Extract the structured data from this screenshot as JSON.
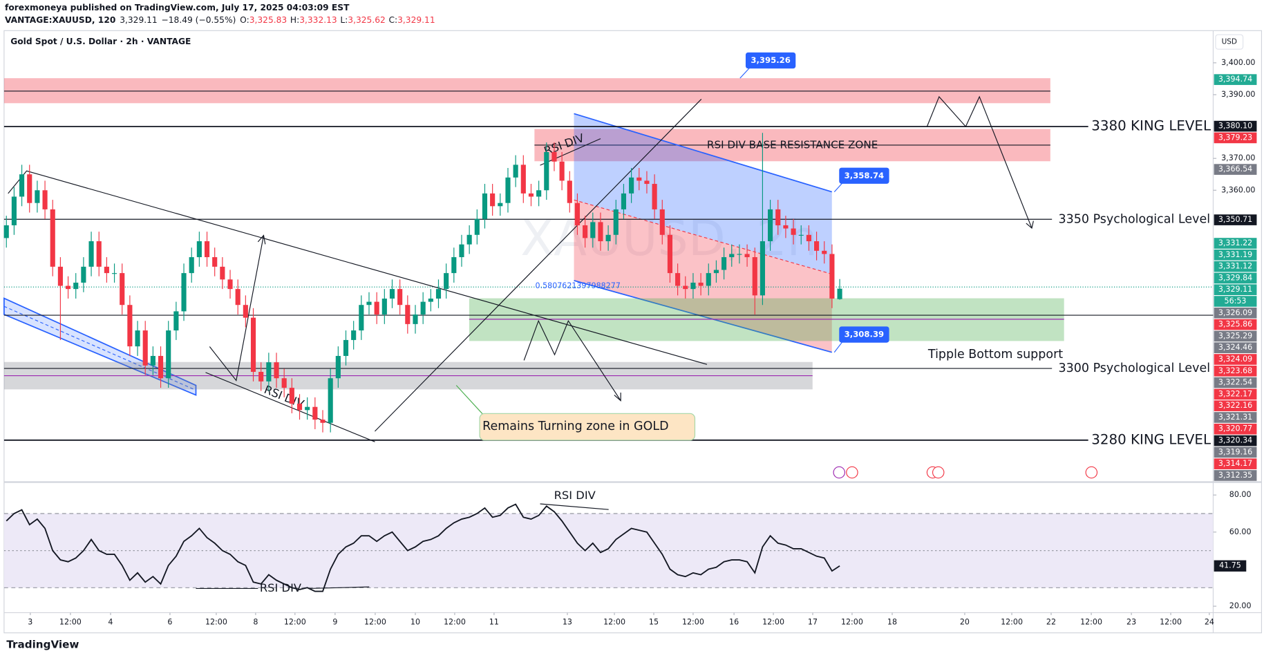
{
  "header": {
    "line1": "forexmoneya published on TradingView.com, July 17, 2025 04:03:09 EST",
    "symbol": "VANTAGE:XAUUSD, 120",
    "last": "3,329.11",
    "change": "−18.49 (−0.55%)",
    "o_label": "O:",
    "o": "3,325.83",
    "h_label": "H:",
    "h": "3,332.13",
    "l_label": "L:",
    "l": "3,325.62",
    "c_label": "C:",
    "c": "3,329.11"
  },
  "chart_data": [
    {
      "type": "candlestick",
      "title": "Gold Spot / U.S. Dollar · 2h · VANTAGE",
      "currency": "USD",
      "watermark": "XAUUSD, 2h",
      "xlim": [
        -0.3,
        156.4
      ],
      "ylim": [
        3268.4,
        3410.1
      ],
      "yticks": [
        {
          "value": 3400,
          "label": "3,400.00"
        },
        {
          "value": 3390,
          "label": "3,390.00"
        },
        {
          "value": 3370,
          "label": "3,370.00"
        },
        {
          "value": 3360,
          "label": "3,360.00"
        }
      ],
      "xticks": [
        {
          "value": 3.1,
          "label": "3"
        },
        {
          "value": 8.3,
          "label": "12:00"
        },
        {
          "value": 13.5,
          "label": "4"
        },
        {
          "value": 21.2,
          "label": "6"
        },
        {
          "value": 27.2,
          "label": "12:00"
        },
        {
          "value": 32.3,
          "label": "8"
        },
        {
          "value": 37.4,
          "label": "12:00"
        },
        {
          "value": 42.6,
          "label": "9"
        },
        {
          "value": 47.8,
          "label": "12:00"
        },
        {
          "value": 53.0,
          "label": "10"
        },
        {
          "value": 58.1,
          "label": "12:00"
        },
        {
          "value": 63.2,
          "label": "11"
        },
        {
          "value": 72.7,
          "label": "13"
        },
        {
          "value": 78.8,
          "label": "12:00"
        },
        {
          "value": 83.9,
          "label": "15"
        },
        {
          "value": 89.0,
          "label": "12:00"
        },
        {
          "value": 94.3,
          "label": "16"
        },
        {
          "value": 99.4,
          "label": "12:00"
        },
        {
          "value": 104.5,
          "label": "17"
        },
        {
          "value": 109.6,
          "label": "12:00"
        },
        {
          "value": 114.8,
          "label": "18"
        },
        {
          "value": 124.2,
          "label": "20"
        },
        {
          "value": 130.3,
          "label": "12:00"
        },
        {
          "value": 135.4,
          "label": "22"
        },
        {
          "value": 140.6,
          "label": "12:00"
        },
        {
          "value": 145.8,
          "label": "23"
        },
        {
          "value": 150.9,
          "label": "12:00"
        },
        {
          "value": 155.9,
          "label": "24"
        }
      ],
      "up_color": "#089981",
      "down_color": "#f23645",
      "open": [
        3345,
        3349,
        3358,
        3365,
        3356,
        3360,
        3354,
        3336,
        3330,
        3329,
        3331,
        3336,
        3344,
        3336,
        3334,
        3334,
        3324,
        3311,
        3316,
        3305,
        3308,
        3301,
        3316,
        3322,
        3334,
        3339,
        3344,
        3339,
        3336,
        3332,
        3329,
        3324,
        3320,
        3303,
        3300,
        3306,
        3301,
        3298,
        3293,
        3291,
        3292,
        3288,
        3287,
        3301,
        3308,
        3313,
        3316,
        3324,
        3325,
        3321,
        3326,
        3329,
        3324,
        3318,
        3321,
        3325,
        3326,
        3329,
        3334,
        3339,
        3343,
        3346,
        3351,
        3359,
        3355,
        3356,
        3364,
        3368,
        3359,
        3358,
        3360,
        3372,
        3369,
        3363,
        3356,
        3349,
        3345,
        3350,
        3344,
        3346,
        3354,
        3359,
        3364,
        3363,
        3362,
        3354,
        3346,
        3334,
        3330,
        3329,
        3331,
        3330,
        3334,
        3335,
        3339,
        3340,
        3340,
        3339,
        3327,
        3344,
        3354,
        3349,
        3348,
        3346,
        3346,
        3344,
        3341,
        3340,
        3325.83
      ],
      "high": [
        3352,
        3361,
        3368,
        3368,
        3363,
        3363,
        3357,
        3339,
        3333,
        3334,
        3339,
        3347,
        3347,
        3339,
        3337,
        3337,
        3327,
        3319,
        3319,
        3311,
        3311,
        3319,
        3325,
        3337,
        3342,
        3347,
        3347,
        3342,
        3339,
        3335,
        3332,
        3327,
        3323,
        3306,
        3309,
        3309,
        3304,
        3301,
        3296,
        3295,
        3295,
        3291,
        3304,
        3311,
        3316,
        3319,
        3327,
        3328,
        3328,
        3329,
        3332,
        3332,
        3327,
        3324,
        3328,
        3329,
        3332,
        3337,
        3342,
        3346,
        3349,
        3354,
        3362,
        3362,
        3359,
        3367,
        3371,
        3371,
        3362,
        3363,
        3375,
        3375,
        3372,
        3366,
        3359,
        3352,
        3353,
        3353,
        3349,
        3357,
        3362,
        3367,
        3367,
        3366,
        3365,
        3357,
        3349,
        3337,
        3333,
        3334,
        3334,
        3337,
        3338,
        3342,
        3343,
        3343,
        3343,
        3342,
        3378,
        3357,
        3357,
        3352,
        3351,
        3349,
        3349,
        3347,
        3344,
        3343,
        3332.13
      ],
      "low": [
        3342,
        3346,
        3355,
        3353,
        3353,
        3351,
        3333,
        3313,
        3326,
        3326,
        3328,
        3333,
        3333,
        3331,
        3331,
        3321,
        3308,
        3308,
        3302,
        3302,
        3298,
        3298,
        3313,
        3319,
        3331,
        3336,
        3336,
        3333,
        3329,
        3326,
        3321,
        3317,
        3300,
        3297,
        3297,
        3298,
        3295,
        3290,
        3288,
        3288,
        3285,
        3284,
        3284,
        3298,
        3305,
        3310,
        3313,
        3321,
        3318,
        3318,
        3323,
        3321,
        3315,
        3315,
        3318,
        3322,
        3323,
        3326,
        3331,
        3336,
        3340,
        3343,
        3348,
        3352,
        3352,
        3353,
        3361,
        3356,
        3355,
        3355,
        3357,
        3366,
        3360,
        3353,
        3346,
        3342,
        3342,
        3341,
        3341,
        3343,
        3351,
        3356,
        3360,
        3359,
        3351,
        3343,
        3331,
        3327,
        3326,
        3326,
        3327,
        3327,
        3331,
        3332,
        3336,
        3337,
        3336,
        3321,
        3324,
        3341,
        3346,
        3345,
        3343,
        3343,
        3341,
        3338,
        3337,
        3323,
        3325.62
      ],
      "close": [
        3349,
        3358,
        3365,
        3356,
        3360,
        3354,
        3336,
        3330,
        3329,
        3331,
        3336,
        3344,
        3336,
        3334,
        3334,
        3324,
        3311,
        3316,
        3305,
        3308,
        3301,
        3316,
        3322,
        3334,
        3339,
        3344,
        3339,
        3336,
        3332,
        3329,
        3324,
        3320,
        3303,
        3300,
        3306,
        3301,
        3298,
        3293,
        3291,
        3292,
        3288,
        3287,
        3301,
        3308,
        3313,
        3316,
        3324,
        3325,
        3321,
        3326,
        3329,
        3324,
        3318,
        3321,
        3325,
        3326,
        3329,
        3334,
        3339,
        3343,
        3346,
        3351,
        3359,
        3355,
        3356,
        3364,
        3368,
        3359,
        3358,
        3360,
        3372,
        3369,
        3363,
        3356,
        3349,
        3345,
        3350,
        3344,
        3346,
        3354,
        3359,
        3364,
        3363,
        3362,
        3354,
        3346,
        3334,
        3330,
        3329,
        3331,
        3330,
        3334,
        3335,
        3339,
        3340,
        3340,
        3339,
        3327,
        3344,
        3354,
        3349,
        3348,
        3346,
        3346,
        3344,
        3341,
        3340,
        3326,
        3329.11
      ],
      "price_labels": [
        {
          "value": 3394.74,
          "label": "3,394.74",
          "color": "#22ab94"
        },
        {
          "value": 3380.1,
          "label": "3,380.10",
          "color": "#131722"
        },
        {
          "value": 3379.23,
          "label": "3,379.23",
          "color": "#f23645"
        },
        {
          "value": 3366.54,
          "label": "3,366.54",
          "color": "#787b86"
        },
        {
          "value": 3350.71,
          "label": "3,350.71",
          "color": "#131722"
        },
        {
          "value": 3331.22,
          "label": "3,331.22",
          "color": "#22ab94"
        },
        {
          "value": 3331.19,
          "label": "3,331.19",
          "color": "#22ab94"
        },
        {
          "value": 3331.12,
          "label": "3,331.12",
          "color": "#22ab94"
        },
        {
          "value": 3329.84,
          "label": "3,329.84",
          "color": "#22ab94"
        },
        {
          "value": 3329.11,
          "label": "3,329.11",
          "color": "#22ab94",
          "countdown": "56:53"
        },
        {
          "value": 3326.09,
          "label": "3,326.09",
          "color": "#787b86"
        },
        {
          "value": 3325.86,
          "label": "3,325.86",
          "color": "#f23645"
        },
        {
          "value": 3325.29,
          "label": "3,325.29",
          "color": "#787b86"
        },
        {
          "value": 3324.46,
          "label": "3,324.46",
          "color": "#787b86"
        },
        {
          "value": 3324.09,
          "label": "3,324.09",
          "color": "#f23645"
        },
        {
          "value": 3323.68,
          "label": "3,323.68",
          "color": "#f23645"
        },
        {
          "value": 3322.54,
          "label": "3,322.54",
          "color": "#787b86"
        },
        {
          "value": 3322.17,
          "label": "3,322.17",
          "color": "#f23645"
        },
        {
          "value": 3322.16,
          "label": "3,322.16",
          "color": "#f23645"
        },
        {
          "value": 3321.31,
          "label": "3,321.31",
          "color": "#787b86"
        },
        {
          "value": 3320.77,
          "label": "3,320.77",
          "color": "#f23645"
        },
        {
          "value": 3320.34,
          "label": "3,320.34",
          "color": "#131722"
        },
        {
          "value": 3319.16,
          "label": "3,319.16",
          "color": "#787b86"
        },
        {
          "value": 3314.17,
          "label": "3,314.17",
          "color": "#f23645"
        },
        {
          "value": 3312.35,
          "label": "3,312.35",
          "color": "#787b86"
        }
      ],
      "annotations": {
        "king_high": "3380 KING LEVEL",
        "psych_high": "3350 Psychological Level",
        "psych_low": "3300 Psychological Level",
        "king_low": "3280 KING LEVEL",
        "resistance_zone": "RSI DIV BASE RESISTANCE ZONE",
        "rsi_div_top": "RSI DIV",
        "rsi_div_low": "RSI DIV",
        "support": "Tipple Bottom support",
        "turning_zone": "Remains Turning zone in GOLD",
        "fib": "0.5807621397988277",
        "callout_high": "3,395.26",
        "callout_mid": "3,358.74",
        "callout_low": "3,308.39"
      }
    },
    {
      "type": "line",
      "color": "#131722",
      "ylim": [
        16.5,
        86.1
      ],
      "yticks": [
        {
          "value": 80,
          "label": "80.00"
        },
        {
          "value": 60,
          "label": "60.00"
        },
        {
          "value": 20,
          "label": "20.00"
        }
      ],
      "current": {
        "value": 41.75,
        "label": "41.75"
      },
      "values": [
        66,
        70,
        72,
        64,
        67,
        62,
        50,
        45,
        44,
        46,
        50,
        56,
        50,
        48,
        48,
        42,
        34,
        38,
        33,
        36,
        32,
        42,
        47,
        55,
        58,
        62,
        57,
        54,
        50,
        48,
        44,
        42,
        33,
        32,
        37,
        34,
        32,
        30,
        29,
        30,
        28,
        28,
        40,
        48,
        52,
        54,
        58,
        58,
        55,
        58,
        60,
        55,
        50,
        52,
        55,
        56,
        58,
        62,
        65,
        67,
        68,
        70,
        73,
        68,
        69,
        73,
        75,
        68,
        67,
        69,
        74,
        71,
        66,
        60,
        54,
        50,
        54,
        49,
        51,
        56,
        59,
        62,
        61,
        60,
        54,
        48,
        40,
        37,
        36,
        38,
        37,
        40,
        41,
        44,
        45,
        45,
        44,
        38,
        52,
        58,
        54,
        53,
        51,
        51,
        49,
        47,
        46,
        39,
        41.75
      ],
      "annotations": {
        "rsi_div_top": "RSI DIV",
        "rsi_div_low": "RSI DIV"
      }
    }
  ],
  "footer": "TradingView"
}
